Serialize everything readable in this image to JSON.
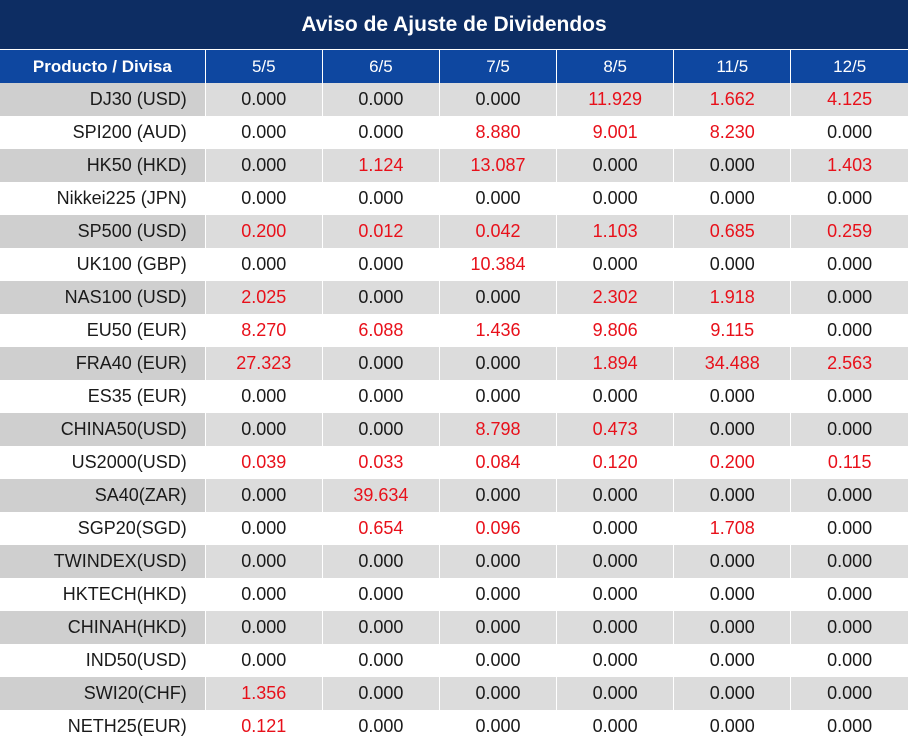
{
  "title": "Aviso de Ajuste de Dividendos",
  "header": {
    "product_label": "Producto / Divisa",
    "dates": [
      "5/5",
      "6/5",
      "7/5",
      "8/5",
      "11/5",
      "12/5"
    ]
  },
  "colors": {
    "title_bg": "#0d2d63",
    "header_bg": "#0e47a0",
    "positive_value": "#e8101a",
    "zero_value": "#1a1a1a",
    "row_stripe": "#dcdcdc"
  },
  "rows": [
    {
      "product": "DJ30 (USD)",
      "values": [
        "0.000",
        "0.000",
        "0.000",
        "11.929",
        "1.662",
        "4.125"
      ]
    },
    {
      "product": "SPI200 (AUD)",
      "values": [
        "0.000",
        "0.000",
        "8.880",
        "9.001",
        "8.230",
        "0.000"
      ]
    },
    {
      "product": "HK50 (HKD)",
      "values": [
        "0.000",
        "1.124",
        "13.087",
        "0.000",
        "0.000",
        "1.403"
      ]
    },
    {
      "product": "Nikkei225 (JPN)",
      "values": [
        "0.000",
        "0.000",
        "0.000",
        "0.000",
        "0.000",
        "0.000"
      ]
    },
    {
      "product": "SP500 (USD)",
      "values": [
        "0.200",
        "0.012",
        "0.042",
        "1.103",
        "0.685",
        "0.259"
      ]
    },
    {
      "product": "UK100 (GBP)",
      "values": [
        "0.000",
        "0.000",
        "10.384",
        "0.000",
        "0.000",
        "0.000"
      ]
    },
    {
      "product": "NAS100 (USD)",
      "values": [
        "2.025",
        "0.000",
        "0.000",
        "2.302",
        "1.918",
        "0.000"
      ]
    },
    {
      "product": "EU50 (EUR)",
      "values": [
        "8.270",
        "6.088",
        "1.436",
        "9.806",
        "9.115",
        "0.000"
      ]
    },
    {
      "product": "FRA40 (EUR)",
      "values": [
        "27.323",
        "0.000",
        "0.000",
        "1.894",
        "34.488",
        "2.563"
      ]
    },
    {
      "product": "ES35 (EUR)",
      "values": [
        "0.000",
        "0.000",
        "0.000",
        "0.000",
        "0.000",
        "0.000"
      ]
    },
    {
      "product": "CHINA50(USD)",
      "values": [
        "0.000",
        "0.000",
        "8.798",
        "0.473",
        "0.000",
        "0.000"
      ]
    },
    {
      "product": "US2000(USD)",
      "values": [
        "0.039",
        "0.033",
        "0.084",
        "0.120",
        "0.200",
        "0.115"
      ]
    },
    {
      "product": "SA40(ZAR)",
      "values": [
        "0.000",
        "39.634",
        "0.000",
        "0.000",
        "0.000",
        "0.000"
      ]
    },
    {
      "product": "SGP20(SGD)",
      "values": [
        "0.000",
        "0.654",
        "0.096",
        "0.000",
        "1.708",
        "0.000"
      ]
    },
    {
      "product": "TWINDEX(USD)",
      "values": [
        "0.000",
        "0.000",
        "0.000",
        "0.000",
        "0.000",
        "0.000"
      ]
    },
    {
      "product": "HKTECH(HKD)",
      "values": [
        "0.000",
        "0.000",
        "0.000",
        "0.000",
        "0.000",
        "0.000"
      ]
    },
    {
      "product": "CHINAH(HKD)",
      "values": [
        "0.000",
        "0.000",
        "0.000",
        "0.000",
        "0.000",
        "0.000"
      ]
    },
    {
      "product": "IND50(USD)",
      "values": [
        "0.000",
        "0.000",
        "0.000",
        "0.000",
        "0.000",
        "0.000"
      ]
    },
    {
      "product": "SWI20(CHF)",
      "values": [
        "1.356",
        "0.000",
        "0.000",
        "0.000",
        "0.000",
        "0.000"
      ]
    },
    {
      "product": "NETH25(EUR)",
      "values": [
        "0.121",
        "0.000",
        "0.000",
        "0.000",
        "0.000",
        "0.000"
      ]
    }
  ]
}
